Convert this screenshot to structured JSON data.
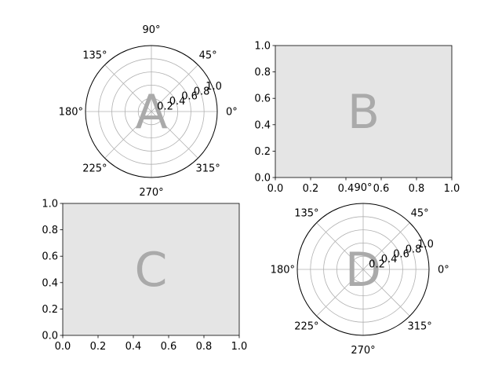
{
  "colors": {
    "background": "#ffffff",
    "panel_face": "#e5e5e5",
    "polar_face": "#ffffff",
    "grid": "#b0b0b0",
    "axis": "#000000",
    "letter": "#aaaaaa",
    "text": "#000000"
  },
  "chart_data": [
    {
      "type": "polar",
      "label": "A",
      "theta_ticks": [
        "0°",
        "45°",
        "90°",
        "135°",
        "180°",
        "225°",
        "270°",
        "315°"
      ],
      "theta_degrees": [
        0,
        45,
        90,
        135,
        180,
        225,
        270,
        315
      ],
      "r_ticks": [
        "0.2",
        "0.4",
        "0.6",
        "0.8",
        "1.0"
      ],
      "r_values": [
        0.2,
        0.4,
        0.6,
        0.8,
        1.0
      ],
      "rlim": [
        0,
        1
      ],
      "grid": true,
      "series": []
    },
    {
      "type": "scatter",
      "label": "B",
      "xlim": [
        0,
        1
      ],
      "ylim": [
        0,
        1
      ],
      "x_ticks": [
        "0.0",
        "0.2",
        "0.4",
        "0.6",
        "0.8",
        "1.0"
      ],
      "y_ticks": [
        "0.0",
        "0.2",
        "0.4",
        "0.6",
        "0.8",
        "1.0"
      ],
      "grid": false,
      "series": []
    },
    {
      "type": "scatter",
      "label": "C",
      "xlim": [
        0,
        1
      ],
      "ylim": [
        0,
        1
      ],
      "x_ticks": [
        "0.0",
        "0.2",
        "0.4",
        "0.6",
        "0.8",
        "1.0"
      ],
      "y_ticks": [
        "0.0",
        "0.2",
        "0.4",
        "0.6",
        "0.8",
        "1.0"
      ],
      "grid": false,
      "series": []
    },
    {
      "type": "polar",
      "label": "D",
      "theta_ticks": [
        "0°",
        "45°",
        "90°",
        "135°",
        "180°",
        "225°",
        "270°",
        "315°"
      ],
      "theta_degrees": [
        0,
        45,
        90,
        135,
        180,
        225,
        270,
        315
      ],
      "r_ticks": [
        "0.2",
        "0.4",
        "0.6",
        "0.8",
        "1.0"
      ],
      "r_values": [
        0.2,
        0.4,
        0.6,
        0.8,
        1.0
      ],
      "rlim": [
        0,
        1
      ],
      "grid": true,
      "series": []
    }
  ]
}
